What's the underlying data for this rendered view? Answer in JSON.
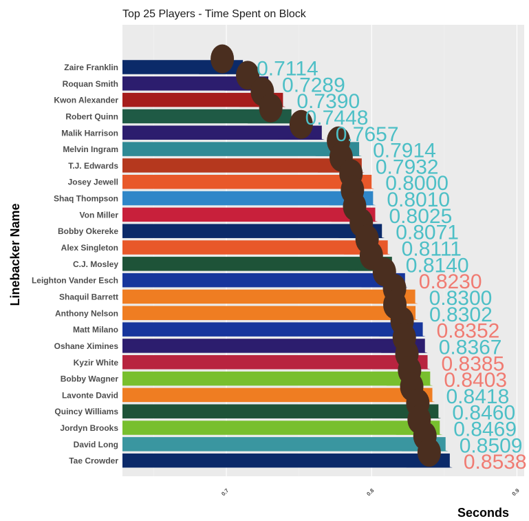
{
  "chart_data": {
    "type": "bar",
    "orientation": "horizontal",
    "title": "Top 25 Players - Time Spent on Block",
    "xlabel": "Seconds",
    "ylabel": "Linebacker Name",
    "xlim": [
      0.6285,
      0.905
    ],
    "xticks": [
      "0.7",
      "0.8",
      "0.9"
    ],
    "grid": true,
    "panel_background": "#ebebeb",
    "value_colors": {
      "high": "#4dbfc6",
      "low": "#f07b72"
    },
    "bars": [
      {
        "name": "Zaire Franklin",
        "value": 0.7114,
        "label": "0.7114",
        "color": "#0b2a69",
        "label_color": "#4dbfc6",
        "headshot": "player-headshot-image"
      },
      {
        "name": "Roquan Smith",
        "value": 0.7289,
        "label": "0.7289",
        "color": "#2c1d6e",
        "label_color": "#4dbfc6",
        "headshot": "player-headshot-image"
      },
      {
        "name": "Kwon Alexander",
        "value": 0.739,
        "label": "0.7390",
        "color": "#a61c1c",
        "label_color": "#4dbfc6",
        "headshot": "player-headshot-image"
      },
      {
        "name": "Robert Quinn",
        "value": 0.7448,
        "label": "0.7448",
        "color": "#1f5a45",
        "label_color": "#4dbfc6",
        "headshot": "player-headshot-image"
      },
      {
        "name": "Malik Harrison",
        "value": 0.7657,
        "label": "0.7657",
        "color": "#2c1d6e",
        "label_color": "#4dbfc6",
        "headshot": "player-headshot-image"
      },
      {
        "name": "Melvin Ingram",
        "value": 0.7914,
        "label": "0.7914",
        "color": "#2f8a95",
        "label_color": "#4dbfc6",
        "headshot": "player-headshot-image"
      },
      {
        "name": "T.J. Edwards",
        "value": 0.7932,
        "label": "0.7932",
        "color": "#b5381e",
        "label_color": "#4dbfc6",
        "headshot": "player-headshot-image"
      },
      {
        "name": "Josey Jewell",
        "value": 0.8,
        "label": "0.8000",
        "color": "#e8582a",
        "label_color": "#4dbfc6",
        "headshot": "player-headshot-image"
      },
      {
        "name": "Shaq Thompson",
        "value": 0.801,
        "label": "0.8010",
        "color": "#2f86c8",
        "label_color": "#4dbfc6",
        "headshot": "player-headshot-image"
      },
      {
        "name": "Von Miller",
        "value": 0.8025,
        "label": "0.8025",
        "color": "#c8203b",
        "label_color": "#4dbfc6",
        "headshot": "player-headshot-image"
      },
      {
        "name": "Bobby Okereke",
        "value": 0.8071,
        "label": "0.8071",
        "color": "#0b2a69",
        "label_color": "#4dbfc6",
        "headshot": "player-headshot-image"
      },
      {
        "name": "Alex Singleton",
        "value": 0.8111,
        "label": "0.8111",
        "color": "#e8582a",
        "label_color": "#4dbfc6",
        "headshot": "player-headshot-image"
      },
      {
        "name": "C.J. Mosley",
        "value": 0.814,
        "label": "0.8140",
        "color": "#1e5338",
        "label_color": "#4dbfc6",
        "headshot": "player-headshot-image"
      },
      {
        "name": "Leighton Vander Esch",
        "value": 0.823,
        "label": "0.8230",
        "color": "#17369c",
        "label_color": "#f07b72",
        "headshot": "player-headshot-image"
      },
      {
        "name": "Shaquil Barrett",
        "value": 0.83,
        "label": "0.8300",
        "color": "#ef7d22",
        "label_color": "#4dbfc6",
        "headshot": "player-headshot-image"
      },
      {
        "name": "Anthony Nelson",
        "value": 0.8302,
        "label": "0.8302",
        "color": "#ef7d22",
        "label_color": "#4dbfc6",
        "headshot": "player-headshot-image"
      },
      {
        "name": "Matt Milano",
        "value": 0.8352,
        "label": "0.8352",
        "color": "#17369c",
        "label_color": "#f07b72",
        "headshot": "player-headshot-image"
      },
      {
        "name": "Oshane Ximines",
        "value": 0.8367,
        "label": "0.8367",
        "color": "#2c1d6e",
        "label_color": "#4dbfc6",
        "headshot": "player-headshot-image"
      },
      {
        "name": "Kyzir White",
        "value": 0.8385,
        "label": "0.8385",
        "color": "#b8243f",
        "label_color": "#f07b72",
        "headshot": "player-headshot-image"
      },
      {
        "name": "Bobby Wagner",
        "value": 0.8403,
        "label": "0.8403",
        "color": "#78bf2e",
        "label_color": "#f07b72",
        "headshot": "player-headshot-image"
      },
      {
        "name": "Lavonte David",
        "value": 0.8418,
        "label": "0.8418",
        "color": "#ef7d22",
        "label_color": "#4dbfc6",
        "headshot": "player-headshot-image"
      },
      {
        "name": "Quincy Williams",
        "value": 0.846,
        "label": "0.8460",
        "color": "#1e5338",
        "label_color": "#4dbfc6",
        "headshot": "player-headshot-image"
      },
      {
        "name": "Jordyn Brooks",
        "value": 0.8469,
        "label": "0.8469",
        "color": "#78bf2e",
        "label_color": "#4dbfc6",
        "headshot": "player-headshot-image"
      },
      {
        "name": "David Long",
        "value": 0.8509,
        "label": "0.8509",
        "color": "#3a96a0",
        "label_color": "#4dbfc6",
        "headshot": "player-headshot-image"
      },
      {
        "name": "Tae Crowder",
        "value": 0.8538,
        "label": "0.8538",
        "color": "#0b2a69",
        "label_color": "#f07b72",
        "headshot": "player-headshot-image"
      }
    ]
  }
}
